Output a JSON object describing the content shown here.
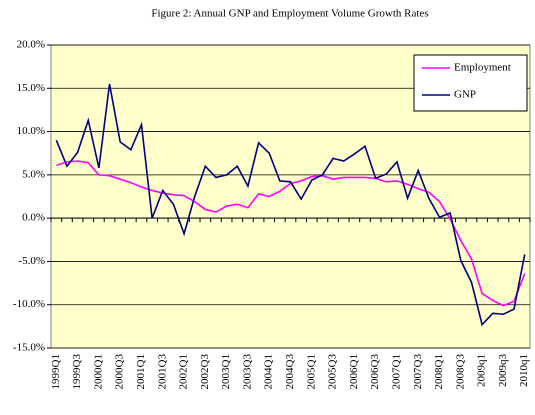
{
  "chart_data": {
    "type": "line",
    "title": "Figure 2: Annual GNP and Employment Volume Growth Rates",
    "categories": [
      "1999Q1",
      null,
      "1999Q3",
      null,
      "2000Q1",
      null,
      "2000Q3",
      null,
      "2001Q1",
      null,
      "2001Q3",
      null,
      "2002Q1",
      null,
      "2002Q3",
      null,
      "2003Q1",
      null,
      "2003Q3",
      null,
      "2004Q1",
      null,
      "2004Q3",
      null,
      "2005Q1",
      null,
      "2005Q3",
      null,
      "2006Q1",
      null,
      "2006Q3",
      null,
      "2007Q1",
      null,
      "2007Q3",
      null,
      "2008Q1",
      null,
      "2008Q3",
      null,
      "2009q1",
      null,
      "2009q3",
      null,
      "2010q1"
    ],
    "series": [
      {
        "name": "Employment",
        "color": "#ff00ff",
        "values": [
          6.1,
          6.5,
          6.6,
          6.4,
          5.0,
          4.9,
          4.5,
          4.1,
          3.6,
          3.2,
          2.9,
          2.7,
          2.6,
          1.9,
          1.0,
          0.7,
          1.4,
          1.6,
          1.2,
          2.8,
          2.5,
          3.1,
          4.0,
          4.3,
          4.8,
          4.9,
          4.5,
          4.7,
          4.7,
          4.7,
          4.6,
          4.2,
          4.3,
          3.9,
          3.4,
          3.0,
          1.9,
          -0.1,
          -2.6,
          -4.7,
          -8.7,
          -9.5,
          -10.1,
          -9.6,
          -6.4
        ]
      },
      {
        "name": "GNP",
        "color": "#000080",
        "values": [
          9.0,
          6.0,
          7.6,
          11.3,
          5.8,
          15.5,
          8.8,
          7.9,
          10.8,
          0.0,
          3.2,
          1.6,
          -1.8,
          2.5,
          6.0,
          4.7,
          5.0,
          6.0,
          3.7,
          8.7,
          7.5,
          4.3,
          4.2,
          2.2,
          4.4,
          5.0,
          6.9,
          6.6,
          7.4,
          8.3,
          4.6,
          5.1,
          6.5,
          2.3,
          5.5,
          2.3,
          0.1,
          0.6,
          -4.9,
          -7.4,
          -12.3,
          -11.0,
          -11.1,
          -10.5,
          -4.2
        ]
      }
    ],
    "ylim": [
      -15,
      20
    ],
    "yticks": [
      {
        "value": -15,
        "label": "-15.0%"
      },
      {
        "value": -10,
        "label": "-10.0%"
      },
      {
        "value": -5,
        "label": "-5.0%"
      },
      {
        "value": 0,
        "label": "0.0%"
      },
      {
        "value": 5,
        "label": "5.0%"
      },
      {
        "value": 10,
        "label": "10.0%"
      },
      {
        "value": 15,
        "label": "15.0%"
      },
      {
        "value": 20,
        "label": "20.0%"
      }
    ],
    "grid": true,
    "legend": "upper right"
  }
}
